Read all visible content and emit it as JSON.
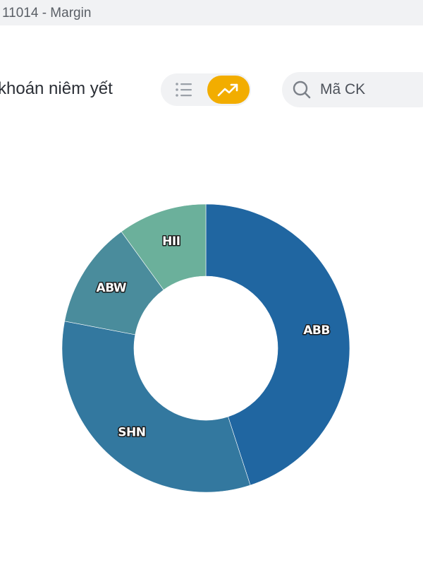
{
  "header": {
    "title": "11014 - Margin"
  },
  "section": {
    "title": "khoán niêm yết"
  },
  "view_toggle": {
    "list_icon": "list-icon",
    "chart_icon": "trending-up-icon",
    "active": "chart",
    "active_color": "#f2ad00"
  },
  "search": {
    "placeholder": "Mã CK",
    "value": "",
    "icon": "search-icon"
  },
  "chart_data": {
    "type": "pie",
    "donut": true,
    "title": "",
    "categories": [
      "ABB",
      "SHN",
      "ABW",
      "HII"
    ],
    "values": [
      45,
      33,
      12,
      10
    ],
    "colors": [
      "#2066a1",
      "#33789f",
      "#4a8c9c",
      "#6bb09b"
    ],
    "legend": "none",
    "labels_on_slices": true
  }
}
